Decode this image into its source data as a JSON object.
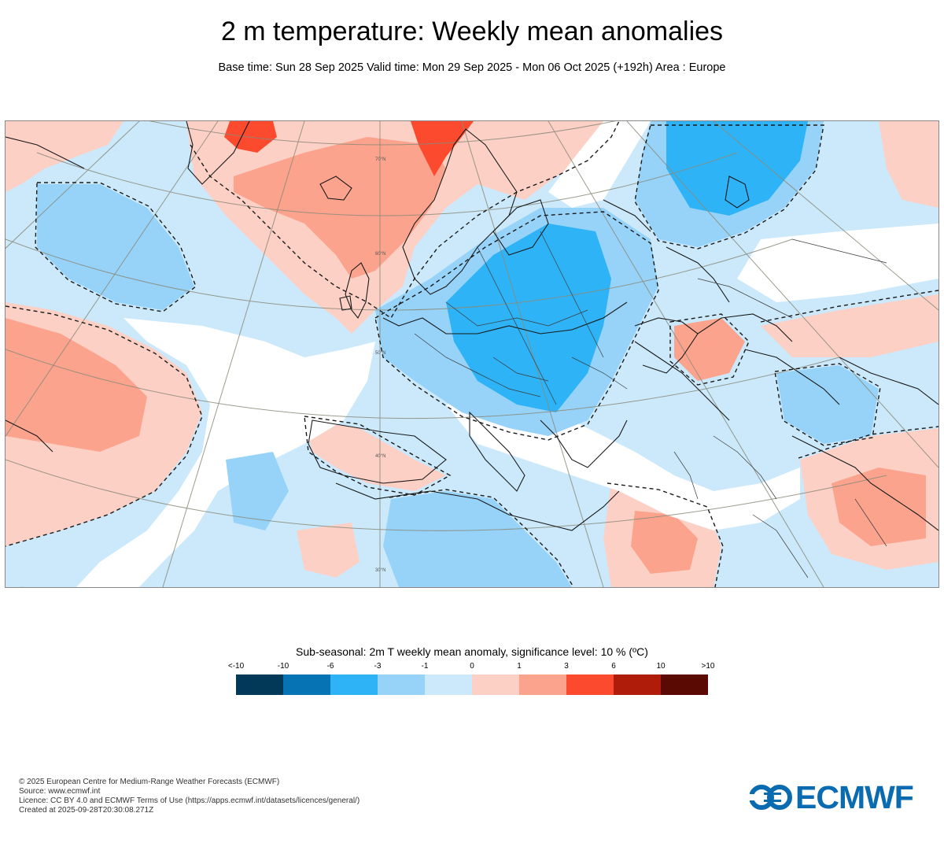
{
  "header": {
    "title": "2 m temperature: Weekly mean anomalies",
    "subtitle": "Base time: Sun 28 Sep 2025 Valid time: Mon 29 Sep 2025 - Mon 06 Oct 2025 (+192h) Area : Europe"
  },
  "map": {
    "area": "Europe",
    "graticule_labels": [
      "70°N",
      "60°N",
      "50°N",
      "40°N",
      "30°N"
    ],
    "colors": {
      "strong_warm": "#fb4a2d",
      "warm": "#fca38e",
      "slight_warm": "#fdd0c5",
      "neutral": "#ffffff",
      "slight_cold": "#cbe9fb",
      "cold": "#97d3f8",
      "strong_cold": "#2eb3f7"
    }
  },
  "legend": {
    "title": "Sub-seasonal: 2m T weekly mean anomaly, significance level: 10 % (ºC)",
    "ticks": [
      "<-10",
      "-10",
      "-6",
      "-3",
      "-1",
      "0",
      "1",
      "3",
      "6",
      "10",
      ">10"
    ],
    "colors": [
      "#023858",
      "#0573b4",
      "#2eb3f7",
      "#97d3f8",
      "#cbe9fb",
      "#fdd0c5",
      "#fca38e",
      "#fb4a2d",
      "#b01c0a",
      "#5a0a03"
    ]
  },
  "footer": {
    "lines": [
      "© 2025 European Centre for Medium-Range Weather Forecasts (ECMWF)",
      "Source: www.ecmwf.int",
      "Licence: CC BY 4.0 and ECMWF Terms of Use (https://apps.ecmwf.int/datasets/licences/general/)",
      "Created at 2025-09-28T20:30:08.271Z"
    ]
  },
  "logo": {
    "text": "ECMWF",
    "color": "#0a6bb0"
  }
}
